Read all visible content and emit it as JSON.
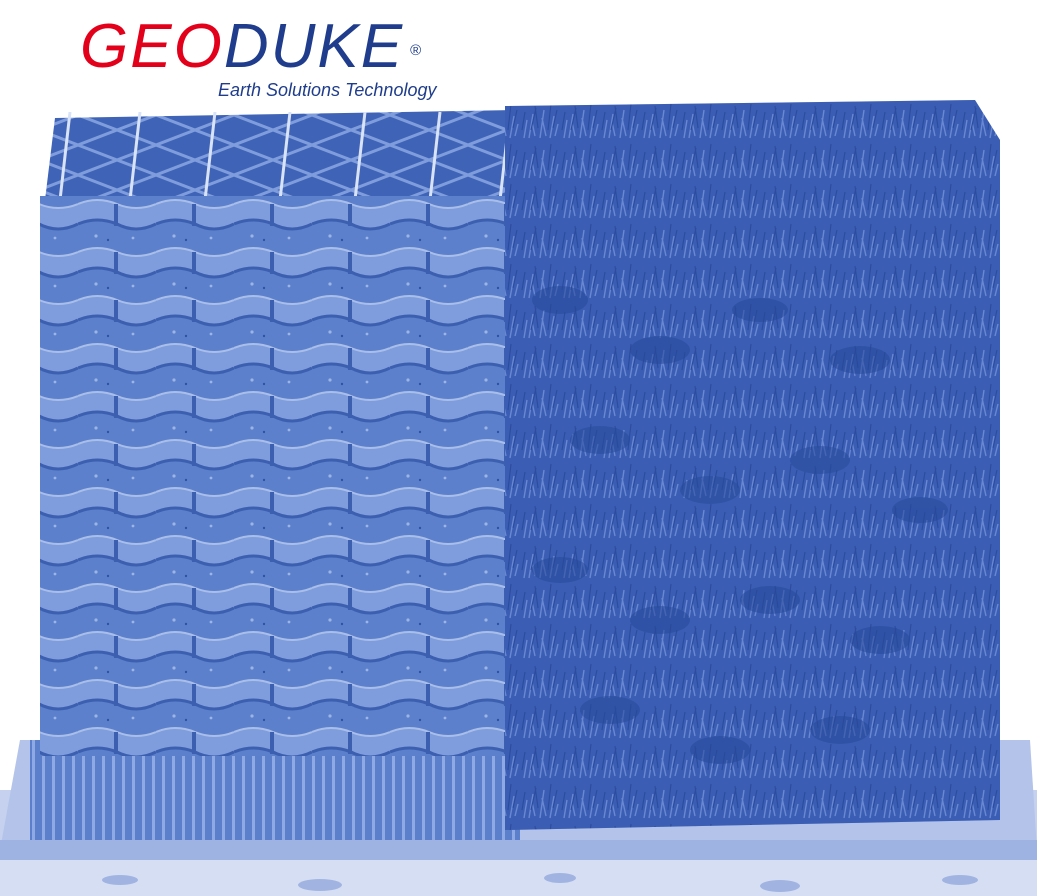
{
  "logo": {
    "brand_part1": "GEO",
    "brand_part2": "DUKE",
    "registered": "®",
    "tagline": "Earth Solutions Technology",
    "colors": {
      "geo": "#e2001a",
      "duke": "#1f3d8c"
    }
  },
  "illustration": {
    "subject": "geocell-retaining-wall",
    "left_half": "empty-cellular-wall-with-gravel",
    "right_half": "vegetated-wall-covered-in-grass",
    "tint": "#4a6fc2"
  }
}
